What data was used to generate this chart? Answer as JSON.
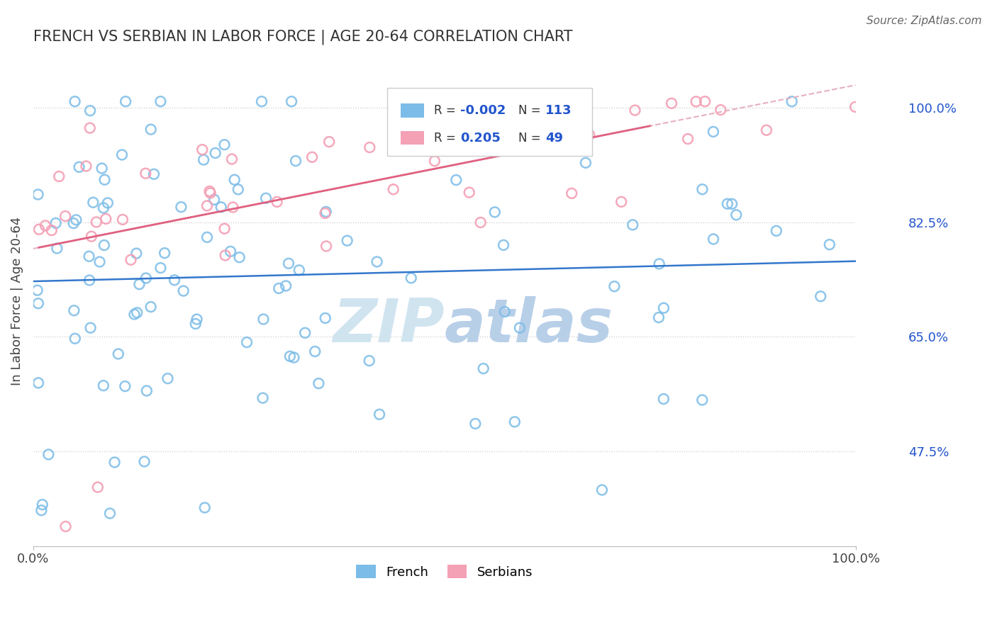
{
  "title": "FRENCH VS SERBIAN IN LABOR FORCE | AGE 20-64 CORRELATION CHART",
  "source_text": "Source: ZipAtlas.com",
  "ylabel": "In Labor Force | Age 20-64",
  "x_min": 0.0,
  "x_max": 1.0,
  "y_min": 0.33,
  "y_max": 1.08,
  "y_ticks": [
    0.475,
    0.65,
    0.825,
    1.0
  ],
  "y_tick_labels": [
    "47.5%",
    "65.0%",
    "82.5%",
    "100.0%"
  ],
  "x_ticks": [
    0.0,
    1.0
  ],
  "x_tick_labels": [
    "0.0%",
    "100.0%"
  ],
  "french_R": -0.002,
  "french_N": 113,
  "serbian_R": 0.205,
  "serbian_N": 49,
  "french_color": "#7bbce8",
  "serbian_color": "#f4a0b5",
  "trend_french_color": "#3377cc",
  "trend_serbian_color": "#e06080",
  "trend_serbian_dashed_color": "#e8b0c0",
  "legend_R_color": "#2255cc",
  "watermark_color": "#d0e4f0",
  "background_color": "#ffffff"
}
